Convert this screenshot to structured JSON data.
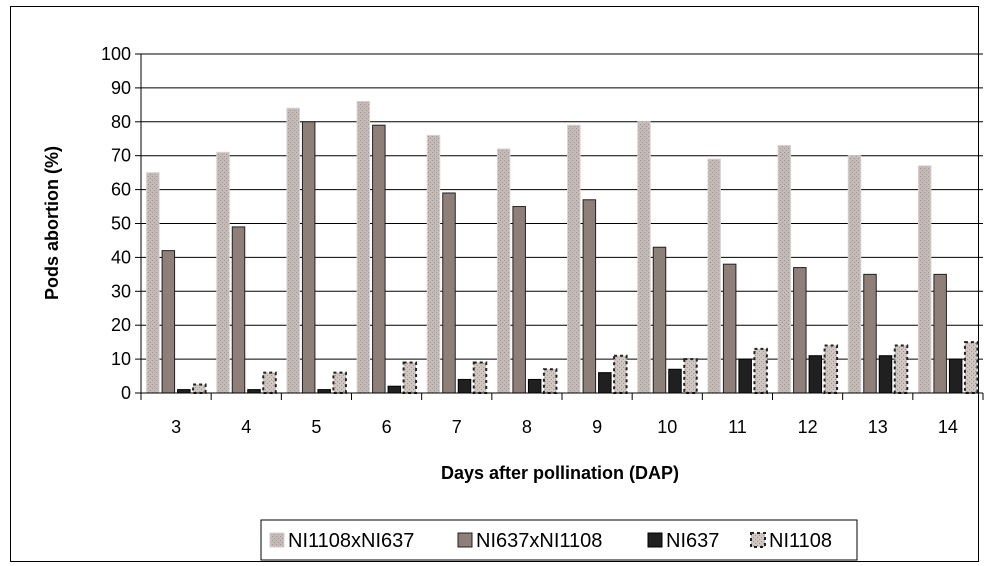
{
  "chart_data": {
    "type": "bar",
    "title": "",
    "xlabel": "Days after pollination (DAP)",
    "ylabel": "Pods abortion (%)",
    "ylim": [
      0,
      100
    ],
    "yticks": [
      0,
      10,
      20,
      30,
      40,
      50,
      60,
      70,
      80,
      90,
      100
    ],
    "grid": true,
    "legend_position": "bottom",
    "categories": [
      "3",
      "4",
      "5",
      "6",
      "7",
      "8",
      "9",
      "10",
      "11",
      "12",
      "13",
      "14"
    ],
    "series": [
      {
        "name": "NI1108xNI637",
        "color": "#b6aca9",
        "pattern": "light-dotted",
        "values": [
          65,
          71,
          84,
          86,
          76,
          72,
          79,
          80,
          69,
          73,
          70,
          67
        ]
      },
      {
        "name": "NI637xNI1108",
        "color": "#8f7f79",
        "pattern": "solid",
        "values": [
          42,
          49,
          80,
          79,
          59,
          55,
          57,
          43,
          38,
          37,
          35,
          35
        ]
      },
      {
        "name": "NI637",
        "color": "#202020",
        "pattern": "solid",
        "values": [
          1,
          1,
          1,
          2,
          4,
          4,
          6,
          7,
          10,
          11,
          11,
          10
        ]
      },
      {
        "name": "NI1108",
        "color": "#c7bdb8",
        "pattern": "dashed-border",
        "values": [
          2.5,
          6,
          6,
          9,
          9,
          7,
          11,
          10,
          13,
          14,
          14,
          15
        ]
      }
    ]
  }
}
